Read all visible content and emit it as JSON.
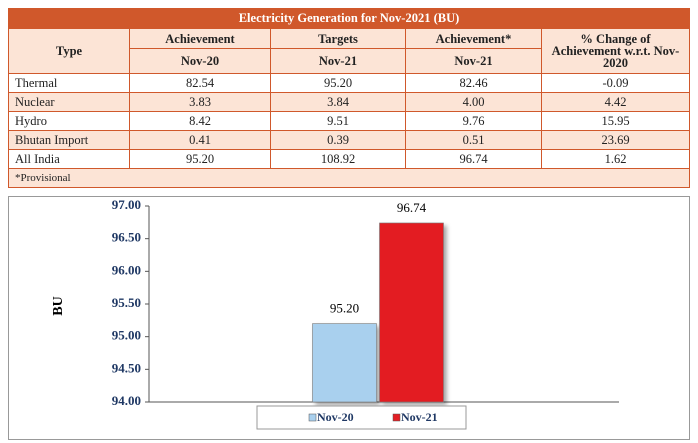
{
  "table": {
    "title": "Electricity Generation for Nov-2021 (BU)",
    "header": [
      [
        "Type",
        "Achievement",
        "Targets",
        "Achievement*",
        "% Change of Achievement w.r.t. Nov-2020"
      ],
      [
        "Nov-20",
        "Nov-21",
        "Nov-21"
      ]
    ],
    "rows": [
      [
        "Thermal",
        "82.54",
        "95.20",
        "82.46",
        "-0.09"
      ],
      [
        "Nuclear",
        "3.83",
        "3.84",
        "4.00",
        "4.42"
      ],
      [
        "Hydro",
        "8.42",
        "9.51",
        "9.76",
        "15.95"
      ],
      [
        "Bhutan Import",
        "0.41",
        "0.39",
        "0.51",
        "23.69"
      ],
      [
        "All India",
        "95.20",
        "108.92",
        "96.74",
        "1.62"
      ]
    ],
    "note": "*Provisional"
  },
  "chart_data": {
    "type": "bar",
    "y_label": "BU",
    "categories": [
      null
    ],
    "series": [
      {
        "name": "Nov-20",
        "color": "#a9d0ee",
        "values": [
          95.2
        ],
        "value_labels": [
          "95.20"
        ]
      },
      {
        "name": "Nov-21",
        "color": "#e31e24",
        "values": [
          96.74
        ],
        "value_labels": [
          "96.74"
        ]
      }
    ],
    "ylim": [
      94,
      97
    ],
    "yticks": [
      {
        "value": 94,
        "label": "94.00"
      },
      {
        "value": 94.5,
        "label": "94.50"
      },
      {
        "value": 95,
        "label": "95.00"
      },
      {
        "value": 95.5,
        "label": "95.50"
      },
      {
        "value": 96,
        "label": "96.00"
      },
      {
        "value": 96.5,
        "label": "96.50"
      },
      {
        "value": 97,
        "label": "97.00"
      }
    ]
  }
}
